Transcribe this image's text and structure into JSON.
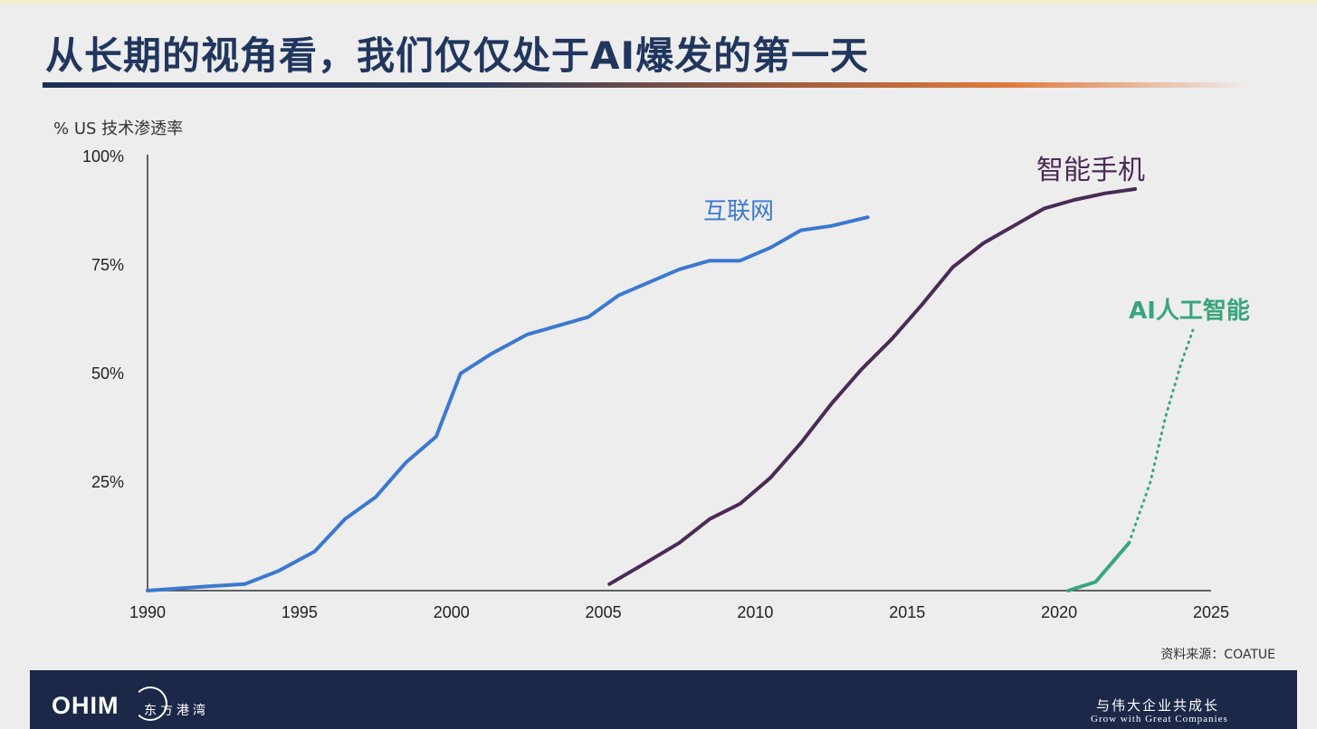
{
  "slide": {
    "title": "从长期的视角看，我们仅仅处于AI爆发的第一天",
    "source": "资料来源：COATUE"
  },
  "footer": {
    "logo": "OHIM",
    "logo_cn": "东方港湾",
    "slogan_cn": "与伟大企业共成长",
    "slogan_en": "Grow with Great Companies"
  },
  "colors": {
    "title": "#20365e",
    "internet": "#3b78d0",
    "smartphone": "#4a2a56",
    "ai": "#3aa57c",
    "footer_bg": "#1c2848"
  },
  "chart_data": {
    "type": "line",
    "title": "",
    "xlabel": "",
    "ylabel": "% US 技术渗透率",
    "xlim": [
      1990,
      2025
    ],
    "ylim": [
      0,
      100
    ],
    "x_ticks": [
      "1990",
      "1995",
      "2000",
      "2005",
      "2010",
      "2015",
      "2020",
      "2025"
    ],
    "y_ticks": [
      "25%",
      "50%",
      "75%",
      "100%"
    ],
    "series": [
      {
        "name": "互联网",
        "color": "#3b78d0",
        "style": "solid",
        "points": [
          [
            1990,
            0
          ],
          [
            1991,
            0.5
          ],
          [
            1992,
            1
          ],
          [
            1993.2,
            1.5
          ],
          [
            1994.3,
            4.5
          ],
          [
            1995.5,
            9
          ],
          [
            1996.5,
            16.5
          ],
          [
            1997.5,
            21.5
          ],
          [
            1998.5,
            29.5
          ],
          [
            1999.5,
            35.5
          ],
          [
            2000.3,
            50
          ],
          [
            2001.3,
            54.5
          ],
          [
            2002.5,
            59
          ],
          [
            2003.5,
            61
          ],
          [
            2004.5,
            63
          ],
          [
            2005.5,
            68
          ],
          [
            2006.5,
            71
          ],
          [
            2007.5,
            74
          ],
          [
            2008.5,
            76
          ],
          [
            2009.5,
            76
          ],
          [
            2010.5,
            79
          ],
          [
            2011.5,
            83
          ],
          [
            2012.5,
            84
          ],
          [
            2013.7,
            86
          ]
        ]
      },
      {
        "name": "智能手机",
        "color": "#4a2a56",
        "style": "solid",
        "points": [
          [
            2005.2,
            1.5
          ],
          [
            2006.3,
            6
          ],
          [
            2007.5,
            11
          ],
          [
            2008.5,
            16.5
          ],
          [
            2009.5,
            20
          ],
          [
            2010.5,
            26
          ],
          [
            2011.5,
            34
          ],
          [
            2012.5,
            43
          ],
          [
            2013.5,
            51
          ],
          [
            2014.5,
            58
          ],
          [
            2015.5,
            66
          ],
          [
            2016.5,
            74.5
          ],
          [
            2017.5,
            80
          ],
          [
            2018.5,
            84
          ],
          [
            2019.5,
            88
          ],
          [
            2020.5,
            90
          ],
          [
            2021.5,
            91.5
          ],
          [
            2022.5,
            92.5
          ]
        ]
      },
      {
        "name": "AI人工智能",
        "color": "#3aa57c",
        "style": "solid",
        "points": [
          [
            2020.3,
            0
          ],
          [
            2021.2,
            2
          ],
          [
            2022.3,
            11
          ]
        ]
      },
      {
        "name": "",
        "color": "#3aa57c",
        "style": "dotted",
        "points": [
          [
            2022.3,
            11
          ],
          [
            2023.0,
            25
          ],
          [
            2023.5,
            40
          ],
          [
            2024.0,
            52
          ],
          [
            2024.4,
            60
          ]
        ]
      }
    ]
  }
}
